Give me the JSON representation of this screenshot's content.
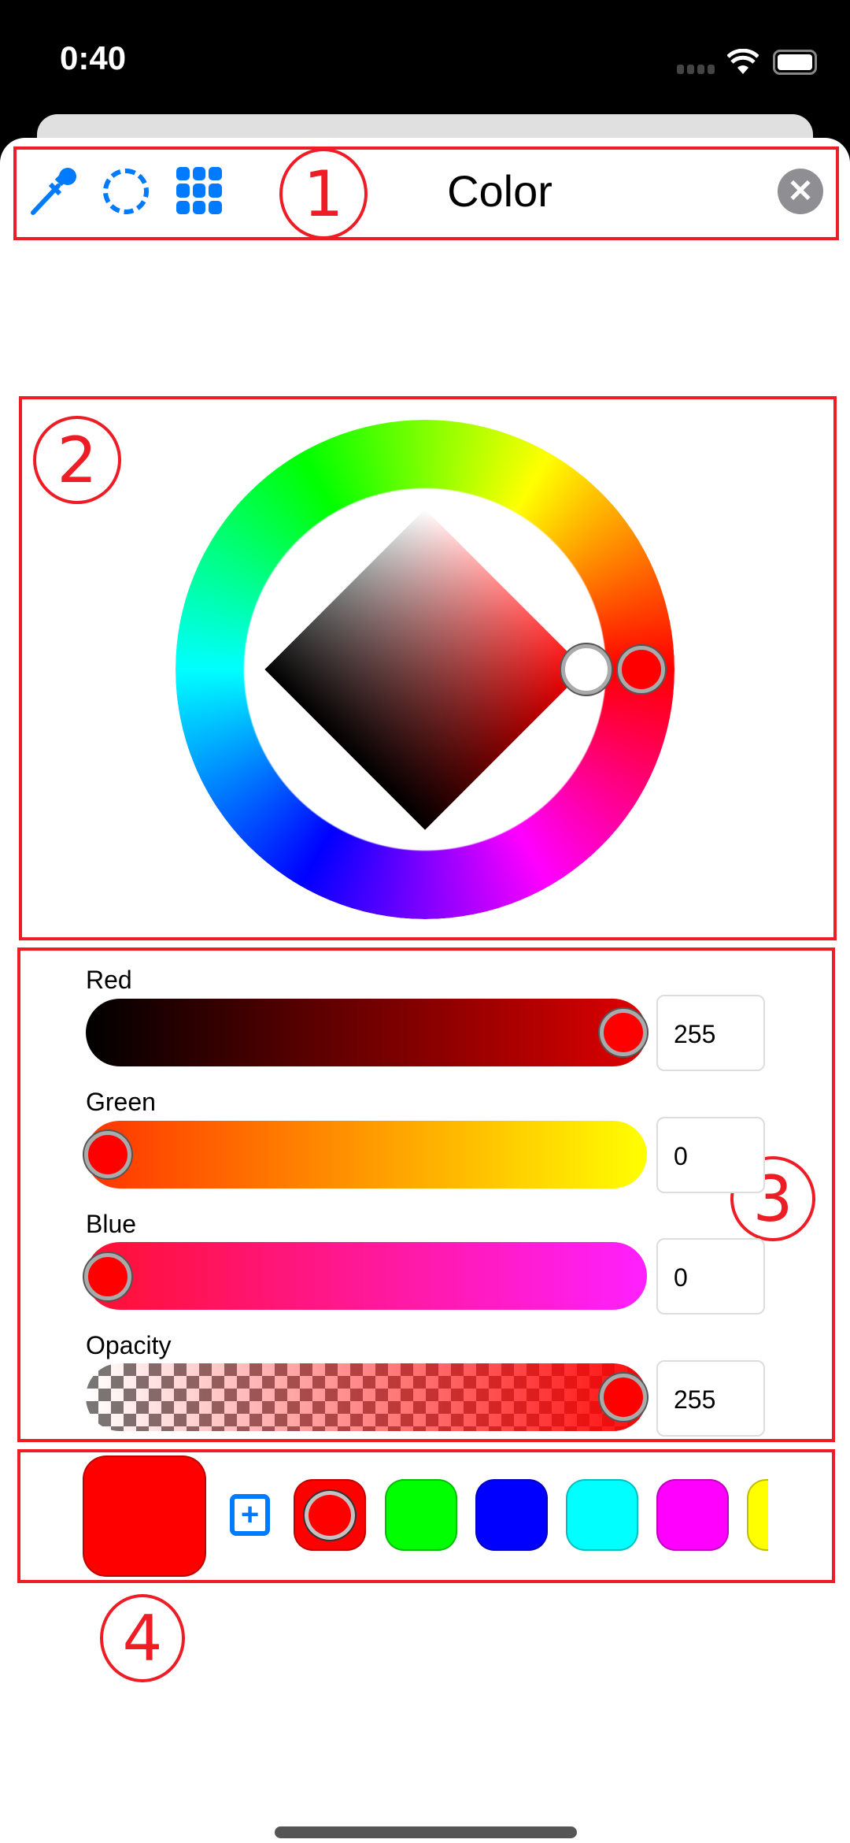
{
  "status": {
    "time": "0:40"
  },
  "header": {
    "title": "Color",
    "close_icon": "close-icon"
  },
  "annotations": [
    "1",
    "2",
    "3",
    "4"
  ],
  "picker": {
    "hue": 0,
    "saturation": 1,
    "brightness": 1
  },
  "sliders": [
    {
      "label": "Red",
      "value": "255",
      "fraction": 1
    },
    {
      "label": "Green",
      "value": "0",
      "fraction": 0
    },
    {
      "label": "Blue",
      "value": "0",
      "fraction": 0
    },
    {
      "label": "Opacity",
      "value": "255",
      "fraction": 1
    }
  ],
  "current_color": "#ff0000",
  "swatches": [
    "#ff0000",
    "#00ff00",
    "#0000ff",
    "#00ffff",
    "#ff00ff",
    "#ffff00"
  ],
  "accent": "#007aff"
}
